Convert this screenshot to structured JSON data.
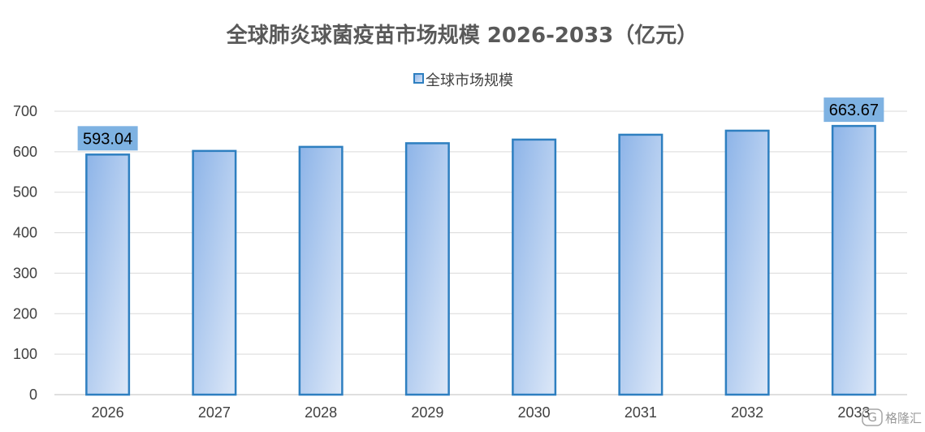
{
  "chart_data": {
    "type": "bar",
    "title": "全球肺炎球菌疫苗市场规模 2026-2033（亿元）",
    "categories": [
      "2026",
      "2027",
      "2028",
      "2029",
      "2030",
      "2031",
      "2032",
      "2033"
    ],
    "series": [
      {
        "name": "全球市场规模",
        "values": [
          593.04,
          602,
          612,
          621,
          630,
          642,
          652,
          663.67
        ]
      }
    ],
    "data_labels": [
      {
        "index": 0,
        "text": "593.04"
      },
      {
        "index": 7,
        "text": "663.67"
      }
    ],
    "ylim": [
      0,
      700
    ],
    "yticks": [
      "0",
      "100",
      "200",
      "300",
      "400",
      "500",
      "600",
      "700"
    ],
    "grid": true,
    "legend_position": "top",
    "xlabel": "",
    "ylabel": ""
  },
  "colors": {
    "bar_fill_start": "#8db4e8",
    "bar_fill_end": "#dde8f8",
    "bar_border": "#2e7fc0",
    "label_bg": "#7eb2e2",
    "grid": "#d9d9d9"
  },
  "watermark": {
    "icon": "gelonghui-logo-icon",
    "text": "格隆汇"
  }
}
